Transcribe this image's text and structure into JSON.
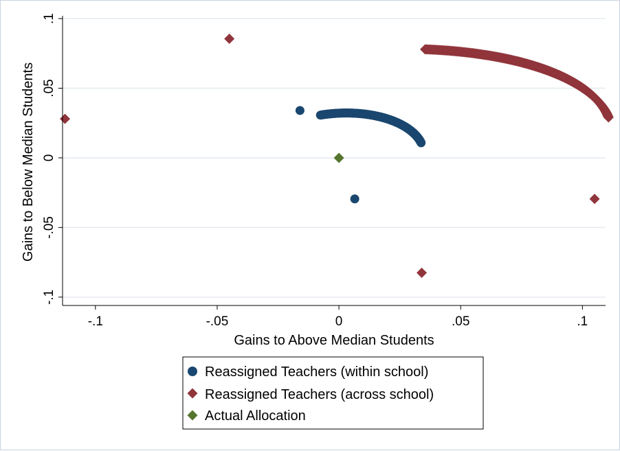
{
  "chart_data": {
    "type": "scatter",
    "title": "",
    "xlabel": "Gains to Above Median Students",
    "ylabel": "Gains to Below Median Students",
    "xlim": [
      -0.1135,
      0.1095
    ],
    "ylim": [
      -0.106,
      0.102
    ],
    "x_ticks": [
      -0.1,
      -0.05,
      0,
      0.05,
      0.1
    ],
    "x_tick_labels": [
      "-.1",
      "-.05",
      "0",
      ".05",
      ".1"
    ],
    "y_ticks": [
      -0.1,
      -0.05,
      0,
      0.05,
      0.1
    ],
    "y_tick_labels": [
      "-.1",
      "-.05",
      "0",
      ".05",
      ".1"
    ],
    "grid": "horizontal",
    "legend_position": "bottom",
    "series": [
      {
        "name": "Reassigned Teachers (within school)",
        "marker": "circle",
        "color": "#1a476f",
        "arc": {
          "rx": 0.0355,
          "ry": 0.0315,
          "rotation_deg": 24,
          "t_start_deg": 81,
          "t_end_deg": 353,
          "direction": "clockwise",
          "n": 150
        },
        "points": [
          [
            -0.016,
            0.034
          ],
          [
            0.0065,
            -0.0295
          ]
        ]
      },
      {
        "name": "Reassigned Teachers (across school)",
        "marker": "diamond",
        "color": "#90353b",
        "arc": {
          "rx": 0.1145,
          "ry": 0.0745,
          "rotation_deg": 16,
          "t_start_deg": 61,
          "t_end_deg": 358,
          "direction": "clockwise",
          "n": 220
        },
        "points": [
          [
            -0.045,
            0.0855
          ],
          [
            -0.1125,
            0.028
          ],
          [
            0.105,
            -0.0295
          ],
          [
            0.034,
            -0.0825
          ]
        ]
      },
      {
        "name": "Actual Allocation",
        "marker": "diamond",
        "color": "#55752f",
        "points": [
          [
            0,
            0
          ]
        ]
      }
    ]
  }
}
